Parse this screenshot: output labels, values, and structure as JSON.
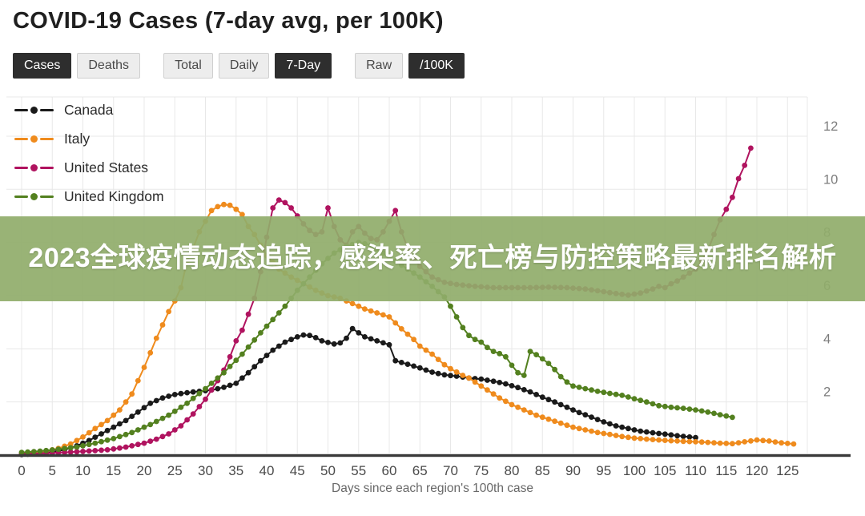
{
  "title": "COVID-19 Cases (7-day avg, per 100K)",
  "controls": {
    "groups": [
      {
        "items": [
          {
            "label": "Cases",
            "active": true
          },
          {
            "label": "Deaths",
            "active": false
          }
        ]
      },
      {
        "items": [
          {
            "label": "Total",
            "active": false
          },
          {
            "label": "Daily",
            "active": false
          },
          {
            "label": "7-Day",
            "active": true
          }
        ]
      },
      {
        "items": [
          {
            "label": "Raw",
            "active": false
          },
          {
            "label": "/100K",
            "active": true
          }
        ]
      }
    ],
    "active_bg": "#2e2e2e",
    "active_text": "#ffffff",
    "inactive_bg": "#ededed",
    "inactive_text": "#4a4a4a"
  },
  "legend": {
    "items": [
      {
        "label": "Canada",
        "color": "#1a1a1a"
      },
      {
        "label": "Italy",
        "color": "#ef8b1d"
      },
      {
        "label": "United States",
        "color": "#b0135f"
      },
      {
        "label": "United Kingdom",
        "color": "#53801f"
      }
    ]
  },
  "banner": {
    "text": "2023全球疫情动态追踪，感染率、死亡榜与防控策略最新排名解析",
    "bg": "#90ac6a",
    "bg_opacity": 0.92,
    "text_color": "#ffffff"
  },
  "chart_data": {
    "type": "line",
    "style": "dotted-line",
    "xlabel": "Days since each region's 100th case",
    "ylabel": "",
    "x_ticks": [
      0,
      5,
      10,
      15,
      20,
      25,
      30,
      35,
      40,
      45,
      50,
      55,
      60,
      65,
      70,
      75,
      80,
      85,
      90,
      95,
      100,
      105,
      110,
      115,
      120,
      125
    ],
    "y_ticks": [
      2,
      4,
      6,
      8,
      10,
      12
    ],
    "xlim": [
      0,
      128
    ],
    "ylim": [
      0,
      13.4
    ],
    "grid": true,
    "y_axis_side": "right",
    "gridline_color": "#e8e8e8",
    "axis_color": "#3a3a3a",
    "tick_text_color": "#4a4a4a",
    "y_tick_text_color": "#7c7c7c",
    "series": [
      {
        "name": "Canada",
        "color": "#1a1a1a",
        "points": [
          [
            0,
            0.02
          ],
          [
            3,
            0.06
          ],
          [
            5,
            0.12
          ],
          [
            7,
            0.2
          ],
          [
            9,
            0.35
          ],
          [
            11,
            0.55
          ],
          [
            13,
            0.8
          ],
          [
            15,
            1.05
          ],
          [
            17,
            1.3
          ],
          [
            19,
            1.62
          ],
          [
            21,
            1.95
          ],
          [
            23,
            2.15
          ],
          [
            25,
            2.28
          ],
          [
            27,
            2.35
          ],
          [
            29,
            2.4
          ],
          [
            31,
            2.45
          ],
          [
            33,
            2.55
          ],
          [
            35,
            2.7
          ],
          [
            37,
            3.1
          ],
          [
            39,
            3.55
          ],
          [
            41,
            3.95
          ],
          [
            43,
            4.25
          ],
          [
            45,
            4.45
          ],
          [
            46,
            4.52
          ],
          [
            47,
            4.5
          ],
          [
            48,
            4.42
          ],
          [
            49,
            4.3
          ],
          [
            51,
            4.18
          ],
          [
            52,
            4.22
          ],
          [
            53,
            4.4
          ],
          [
            54,
            4.76
          ],
          [
            55,
            4.6
          ],
          [
            56,
            4.45
          ],
          [
            58,
            4.3
          ],
          [
            60,
            4.15
          ],
          [
            61,
            3.55
          ],
          [
            63,
            3.42
          ],
          [
            65,
            3.28
          ],
          [
            67,
            3.12
          ],
          [
            69,
            3.02
          ],
          [
            71,
            2.97
          ],
          [
            73,
            2.9
          ],
          [
            75,
            2.86
          ],
          [
            77,
            2.78
          ],
          [
            79,
            2.68
          ],
          [
            81,
            2.54
          ],
          [
            83,
            2.38
          ],
          [
            85,
            2.18
          ],
          [
            87,
            2.0
          ],
          [
            89,
            1.8
          ],
          [
            91,
            1.6
          ],
          [
            93,
            1.43
          ],
          [
            95,
            1.25
          ],
          [
            97,
            1.1
          ],
          [
            99,
            1.0
          ],
          [
            101,
            0.9
          ],
          [
            103,
            0.84
          ],
          [
            105,
            0.79
          ],
          [
            107,
            0.73
          ],
          [
            109,
            0.68
          ],
          [
            110,
            0.66
          ]
        ]
      },
      {
        "name": "Italy",
        "color": "#ef8b1d",
        "points": [
          [
            0,
            0.05
          ],
          [
            4,
            0.15
          ],
          [
            6,
            0.25
          ],
          [
            8,
            0.42
          ],
          [
            10,
            0.68
          ],
          [
            12,
            1.0
          ],
          [
            14,
            1.3
          ],
          [
            16,
            1.7
          ],
          [
            18,
            2.3
          ],
          [
            20,
            3.3
          ],
          [
            22,
            4.4
          ],
          [
            24,
            5.4
          ],
          [
            25,
            5.8
          ],
          [
            26,
            6.3
          ],
          [
            27,
            7.3
          ],
          [
            28,
            7.8
          ],
          [
            29,
            8.4
          ],
          [
            30,
            8.8
          ],
          [
            31,
            9.2
          ],
          [
            32,
            9.35
          ],
          [
            33,
            9.43
          ],
          [
            34,
            9.4
          ],
          [
            35,
            9.25
          ],
          [
            36,
            9.05
          ],
          [
            37,
            8.6
          ],
          [
            38,
            8.3
          ],
          [
            39,
            7.9
          ],
          [
            40,
            7.5
          ],
          [
            42,
            7.0
          ],
          [
            44,
            6.7
          ],
          [
            46,
            6.45
          ],
          [
            48,
            6.2
          ],
          [
            50,
            6.0
          ],
          [
            52,
            5.9
          ],
          [
            54,
            5.7
          ],
          [
            56,
            5.5
          ],
          [
            58,
            5.35
          ],
          [
            60,
            5.2
          ],
          [
            62,
            4.75
          ],
          [
            64,
            4.35
          ],
          [
            65,
            4.1
          ],
          [
            67,
            3.8
          ],
          [
            69,
            3.4
          ],
          [
            70,
            3.25
          ],
          [
            72,
            3.0
          ],
          [
            73,
            2.9
          ],
          [
            75,
            2.6
          ],
          [
            77,
            2.3
          ],
          [
            78,
            2.15
          ],
          [
            80,
            1.9
          ],
          [
            82,
            1.7
          ],
          [
            84,
            1.5
          ],
          [
            86,
            1.35
          ],
          [
            88,
            1.2
          ],
          [
            90,
            1.05
          ],
          [
            92,
            0.95
          ],
          [
            94,
            0.85
          ],
          [
            96,
            0.78
          ],
          [
            98,
            0.7
          ],
          [
            100,
            0.64
          ],
          [
            102,
            0.6
          ],
          [
            104,
            0.57
          ],
          [
            106,
            0.54
          ],
          [
            108,
            0.52
          ],
          [
            110,
            0.5
          ],
          [
            112,
            0.48
          ],
          [
            114,
            0.45
          ],
          [
            116,
            0.43
          ],
          [
            118,
            0.5
          ],
          [
            120,
            0.57
          ],
          [
            122,
            0.53
          ],
          [
            124,
            0.46
          ],
          [
            126,
            0.42
          ]
        ]
      },
      {
        "name": "United States",
        "color": "#b0135f",
        "points": [
          [
            0,
            0.04
          ],
          [
            5,
            0.08
          ],
          [
            10,
            0.14
          ],
          [
            14,
            0.2
          ],
          [
            17,
            0.3
          ],
          [
            20,
            0.45
          ],
          [
            22,
            0.6
          ],
          [
            24,
            0.8
          ],
          [
            26,
            1.1
          ],
          [
            28,
            1.55
          ],
          [
            30,
            2.1
          ],
          [
            32,
            2.8
          ],
          [
            33,
            3.2
          ],
          [
            34,
            3.7
          ],
          [
            35,
            4.3
          ],
          [
            36,
            4.7
          ],
          [
            37,
            5.3
          ],
          [
            38,
            5.9
          ],
          [
            39,
            6.9
          ],
          [
            40,
            8.2
          ],
          [
            41,
            9.3
          ],
          [
            42,
            9.6
          ],
          [
            43,
            9.5
          ],
          [
            44,
            9.3
          ],
          [
            45,
            9.0
          ],
          [
            46,
            8.7
          ],
          [
            47,
            8.45
          ],
          [
            48,
            8.3
          ],
          [
            49,
            8.4
          ],
          [
            50,
            9.3
          ],
          [
            51,
            8.6
          ],
          [
            52,
            8.1
          ],
          [
            53,
            7.9
          ],
          [
            54,
            8.4
          ],
          [
            55,
            8.6
          ],
          [
            56,
            8.35
          ],
          [
            57,
            8.15
          ],
          [
            58,
            8.1
          ],
          [
            59,
            8.4
          ],
          [
            60,
            8.8
          ],
          [
            61,
            9.2
          ],
          [
            62,
            8.4
          ],
          [
            63,
            7.8
          ],
          [
            64,
            7.4
          ],
          [
            65,
            7.1
          ],
          [
            66,
            6.9
          ],
          [
            67,
            6.7
          ],
          [
            68,
            6.6
          ],
          [
            69,
            6.5
          ],
          [
            71,
            6.42
          ],
          [
            74,
            6.35
          ],
          [
            77,
            6.3
          ],
          [
            80,
            6.3
          ],
          [
            83,
            6.3
          ],
          [
            86,
            6.32
          ],
          [
            89,
            6.3
          ],
          [
            92,
            6.25
          ],
          [
            95,
            6.15
          ],
          [
            97,
            6.08
          ],
          [
            99,
            6.02
          ],
          [
            101,
            6.1
          ],
          [
            103,
            6.25
          ],
          [
            104,
            6.35
          ],
          [
            105,
            6.3
          ],
          [
            106,
            6.45
          ],
          [
            107,
            6.55
          ],
          [
            108,
            6.7
          ],
          [
            109,
            6.85
          ],
          [
            110,
            7.0
          ],
          [
            111,
            7.3
          ],
          [
            112,
            7.7
          ],
          [
            113,
            8.3
          ],
          [
            114,
            8.85
          ],
          [
            115,
            9.25
          ],
          [
            116,
            9.7
          ],
          [
            117,
            10.4
          ],
          [
            118,
            10.9
          ],
          [
            119,
            11.55
          ]
        ]
      },
      {
        "name": "United Kingdom",
        "color": "#53801f",
        "points": [
          [
            0,
            0.1
          ],
          [
            3,
            0.15
          ],
          [
            6,
            0.22
          ],
          [
            9,
            0.3
          ],
          [
            12,
            0.45
          ],
          [
            15,
            0.62
          ],
          [
            18,
            0.85
          ],
          [
            21,
            1.15
          ],
          [
            24,
            1.5
          ],
          [
            27,
            1.95
          ],
          [
            30,
            2.5
          ],
          [
            33,
            3.1
          ],
          [
            36,
            3.8
          ],
          [
            39,
            4.6
          ],
          [
            41,
            5.1
          ],
          [
            43,
            5.6
          ],
          [
            45,
            6.2
          ],
          [
            47,
            6.7
          ],
          [
            49,
            7.2
          ],
          [
            51,
            7.6
          ],
          [
            53,
            7.85
          ],
          [
            55,
            8.0
          ],
          [
            57,
            7.9
          ],
          [
            59,
            7.6
          ],
          [
            61,
            7.3
          ],
          [
            63,
            7.0
          ],
          [
            65,
            6.7
          ],
          [
            67,
            6.35
          ],
          [
            68,
            6.15
          ],
          [
            69,
            5.95
          ],
          [
            70,
            5.6
          ],
          [
            71,
            5.2
          ],
          [
            72,
            4.8
          ],
          [
            73,
            4.5
          ],
          [
            74,
            4.35
          ],
          [
            75,
            4.25
          ],
          [
            76,
            4.05
          ],
          [
            77,
            3.9
          ],
          [
            78,
            3.82
          ],
          [
            79,
            3.7
          ],
          [
            80,
            3.38
          ],
          [
            81,
            3.1
          ],
          [
            82,
            3.0
          ],
          [
            83,
            3.9
          ],
          [
            84,
            3.78
          ],
          [
            85,
            3.62
          ],
          [
            86,
            3.45
          ],
          [
            87,
            3.22
          ],
          [
            88,
            2.95
          ],
          [
            89,
            2.75
          ],
          [
            90,
            2.6
          ],
          [
            91,
            2.55
          ],
          [
            92,
            2.5
          ],
          [
            94,
            2.4
          ],
          [
            96,
            2.32
          ],
          [
            98,
            2.25
          ],
          [
            100,
            2.12
          ],
          [
            102,
            2.0
          ],
          [
            104,
            1.86
          ],
          [
            106,
            1.8
          ],
          [
            108,
            1.76
          ],
          [
            110,
            1.7
          ],
          [
            112,
            1.62
          ],
          [
            114,
            1.52
          ],
          [
            116,
            1.42
          ]
        ]
      }
    ]
  }
}
